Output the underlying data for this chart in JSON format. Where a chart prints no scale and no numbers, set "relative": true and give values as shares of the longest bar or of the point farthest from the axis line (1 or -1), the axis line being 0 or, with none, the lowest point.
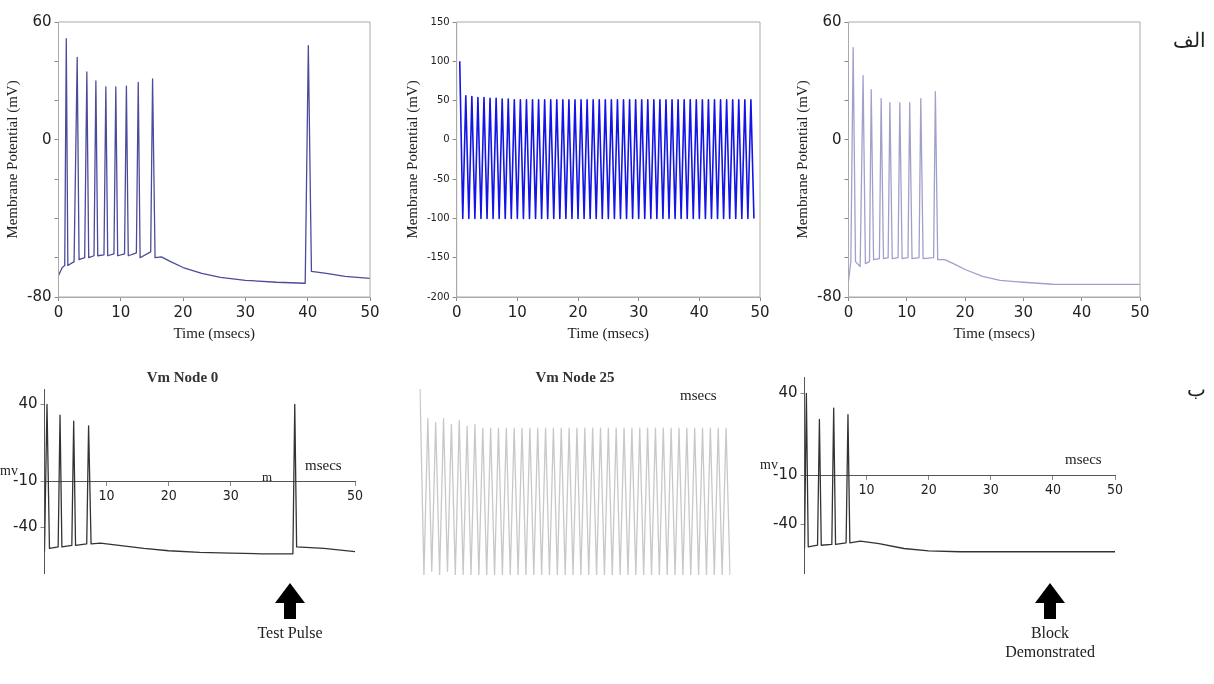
{
  "chart_data": [
    {
      "type": "line",
      "xlabel": "Time (msecs)",
      "ylabel": "Membrane Potential (mV)",
      "color": "#4b4b9b",
      "marker": "none",
      "x": [
        0,
        0.6,
        1.0,
        1.25,
        1.5,
        2.5,
        3.0,
        3.3,
        4.2,
        4.55,
        4.85,
        5.7,
        6.0,
        6.3,
        7.3,
        7.6,
        7.9,
        8.9,
        9.2,
        9.5,
        10.6,
        10.9,
        11.2,
        12.5,
        12.8,
        13.1,
        14.8,
        15.1,
        15.5,
        16.5,
        18,
        20,
        23,
        26,
        30,
        35,
        39.6,
        40.1,
        40.6,
        43,
        46,
        50
      ],
      "values": [
        -69,
        -65,
        -64,
        51.5,
        -64,
        -62,
        42,
        -61,
        -60,
        34.6,
        -60,
        -59,
        30,
        -59,
        -58.5,
        27,
        -59,
        -58,
        27,
        -59,
        -58,
        27.4,
        -59,
        -57.5,
        29.3,
        -60,
        -57,
        31,
        -60,
        -59.6,
        -62,
        -65,
        -68,
        -70,
        -71.5,
        -72.5,
        -73,
        48,
        -67,
        -68,
        -69.5,
        -70.5
      ],
      "xlim": [
        0,
        50
      ],
      "ylim": [
        -80,
        60
      ],
      "xticks": [
        0,
        10,
        20,
        30,
        40,
        50
      ],
      "yticks": [
        -80,
        {
          "value": -60,
          "label": null
        },
        {
          "value": -40,
          "label": null
        },
        {
          "value": -20,
          "label": null
        },
        0,
        {
          "value": 20,
          "label": null
        },
        {
          "value": 40,
          "label": null
        },
        60
      ]
    },
    {
      "type": "line",
      "xlabel": "Time (msecs)",
      "ylabel": "Membrane Potential (mV)",
      "color": "#1414e6",
      "marker": "none",
      "x": [
        0.5,
        1,
        1.5,
        2,
        2.5,
        3,
        3.5,
        4,
        4.5,
        5,
        5.5,
        6,
        6.5,
        7,
        7.5,
        8,
        8.5,
        9,
        9.5,
        10,
        10.5,
        11,
        11.5,
        12,
        12.5,
        13,
        13.5,
        14,
        14.5,
        15,
        15.5,
        16,
        16.5,
        17,
        17.5,
        18,
        18.5,
        19,
        19.5,
        20,
        20.5,
        21,
        21.5,
        22,
        22.5,
        23,
        23.5,
        24,
        24.5,
        25,
        25.5,
        26,
        26.5,
        27,
        27.5,
        28,
        28.5,
        29,
        29.5,
        30,
        30.5,
        31,
        31.5,
        32,
        32.5,
        33,
        33.5,
        34,
        34.5,
        35,
        35.5,
        36,
        36.5,
        37,
        37.5,
        38,
        38.5,
        39,
        39.5,
        40,
        40.5,
        41,
        41.5,
        42,
        42.5,
        43,
        43.5,
        44,
        44.5,
        45,
        45.5,
        46,
        46.5,
        47,
        47.5,
        48,
        48.5,
        49
      ],
      "values": [
        100,
        -100,
        56,
        -100,
        55,
        -100,
        54,
        -100,
        54,
        -100,
        53,
        -100,
        53,
        -100,
        52,
        -100,
        52,
        -100,
        51,
        -100,
        51,
        -100,
        51,
        -100,
        51,
        -100,
        51,
        -100,
        51,
        -100,
        51,
        -100,
        51,
        -100,
        51,
        -100,
        51,
        -100,
        51,
        -100,
        51,
        -100,
        51,
        -100,
        51,
        -100,
        51,
        -100,
        51,
        -100,
        51,
        -100,
        51,
        -100,
        51,
        -100,
        51,
        -100,
        51,
        -100,
        51,
        -100,
        51,
        -100,
        51,
        -100,
        51,
        -100,
        51,
        -100,
        51,
        -100,
        51,
        -100,
        51,
        -100,
        51,
        -100,
        51,
        -100,
        51,
        -100,
        51,
        -100,
        51,
        -100,
        51,
        -100,
        51,
        -100,
        51,
        -100,
        51,
        -100,
        51,
        -100,
        51,
        -100
      ],
      "xlim": [
        0,
        50
      ],
      "ylim": [
        -200,
        150
      ],
      "xticks": [
        0,
        10,
        20,
        30,
        40,
        50
      ],
      "yticks": [
        -200,
        -150,
        -100,
        -50,
        0,
        50,
        100,
        150
      ]
    },
    {
      "type": "line",
      "xlabel": "Time (msecs)",
      "ylabel": "Membrane Potential (mV)",
      "color": "#a0a0cc",
      "marker": "none",
      "x": [
        0,
        0.4,
        0.8,
        1.2,
        2.0,
        2.5,
        2.9,
        3.6,
        3.9,
        4.3,
        5.3,
        5.6,
        6.0,
        6.8,
        7.1,
        7.5,
        8.5,
        8.8,
        9.2,
        10.2,
        10.5,
        10.9,
        12.1,
        12.4,
        12.8,
        14.6,
        14.9,
        15.3,
        16.5,
        18,
        20,
        23,
        26,
        30,
        35,
        40,
        50
      ],
      "values": [
        -72,
        -62,
        47,
        -62,
        -64.5,
        32.7,
        -63,
        -62,
        25.5,
        -61,
        -60.5,
        21,
        -60.5,
        -60,
        19,
        -60.5,
        -60,
        19,
        -60.5,
        -60,
        19,
        -60.5,
        -60,
        21,
        -60.5,
        -60,
        24.5,
        -61,
        -61,
        -63,
        -66,
        -69.5,
        -71.5,
        -72.5,
        -73.5,
        -73.6,
        -73.6
      ],
      "xlim": [
        0,
        50
      ],
      "ylim": [
        -80,
        60
      ],
      "xticks": [
        0,
        10,
        20,
        30,
        40,
        50
      ],
      "yticks": [
        -80,
        {
          "value": -60,
          "label": null
        },
        {
          "value": -40,
          "label": null
        },
        {
          "value": -20,
          "label": null
        },
        0,
        {
          "value": 20,
          "label": null
        },
        {
          "value": 40,
          "label": null
        },
        60
      ],
      "annotations": [
        "الف"
      ]
    },
    {
      "type": "line",
      "title": "Vm Node 0",
      "xlabel": "msecs",
      "ylabel": "mv",
      "color": "#333333",
      "marker": "none",
      "x": [
        0,
        0.4,
        0.8,
        2.2,
        2.5,
        2.8,
        4.4,
        4.7,
        5.0,
        6.8,
        7.1,
        7.5,
        9,
        12,
        16,
        20,
        25,
        30,
        35,
        40,
        40.3,
        40.6,
        45,
        50
      ],
      "values": [
        -56,
        40,
        -54,
        -53,
        33,
        -53,
        -52,
        29,
        -52,
        -51,
        26,
        -51,
        -50.5,
        -52,
        -54,
        -55.5,
        -56.5,
        -57,
        -57.5,
        -57.5,
        40,
        -53,
        -54,
        -56
      ],
      "xlim": [
        0,
        50
      ],
      "ylim": [
        -70,
        50
      ],
      "xticks": [
        10,
        20,
        30,
        50
      ],
      "yticks": [
        -40,
        -10,
        40
      ],
      "annotations": [
        "m",
        "Test Pulse"
      ]
    },
    {
      "type": "line",
      "title": "Vm Node 25",
      "xlabel": "msecs",
      "color": "#c8c8c8",
      "marker": "none",
      "relative": true,
      "tick_labels": false,
      "categories": [
        null,
        null,
        null,
        null,
        null,
        null,
        null,
        null,
        null,
        null,
        null,
        null,
        null,
        null,
        null,
        null,
        null,
        null,
        null,
        null,
        null,
        null,
        null,
        null,
        null,
        null,
        null,
        null,
        null,
        null,
        null,
        null,
        null,
        null,
        null,
        null,
        null,
        null,
        null,
        null,
        null,
        null,
        null,
        null,
        null,
        null,
        null,
        null,
        null,
        null,
        null,
        null,
        null,
        null,
        null,
        null,
        null,
        null,
        null,
        null,
        null,
        null,
        null,
        null,
        null,
        null,
        null,
        null,
        null,
        null,
        null,
        null,
        null,
        null,
        null,
        null,
        null,
        null,
        null,
        null
      ],
      "values": [
        1,
        0,
        0.84,
        0.02,
        0.82,
        0,
        0.84,
        0.02,
        0.81,
        0,
        0.83,
        0,
        0.8,
        0,
        0.81,
        0,
        0.79,
        0,
        0.79,
        0,
        0.79,
        0,
        0.79,
        0,
        0.79,
        0,
        0.79,
        0,
        0.79,
        0,
        0.79,
        0,
        0.79,
        0,
        0.79,
        0,
        0.79,
        0,
        0.79,
        0,
        0.79,
        0,
        0.79,
        0,
        0.79,
        0,
        0.79,
        0,
        0.79,
        0,
        0.79,
        0,
        0.79,
        0,
        0.79,
        0,
        0.79,
        0,
        0.79,
        0,
        0.79,
        0,
        0.79,
        0,
        0.79,
        0,
        0.79,
        0,
        0.79,
        0,
        0.79,
        0,
        0.79,
        0,
        0.79,
        0,
        0.79,
        0,
        0.79,
        0
      ]
    },
    {
      "type": "line",
      "xlabel": "msecs",
      "ylabel": "mv",
      "color": "#333333",
      "marker": "none",
      "x": [
        0,
        0.3,
        0.6,
        2.1,
        2.4,
        2.7,
        4.4,
        4.7,
        5.0,
        6.7,
        7.0,
        7.3,
        9,
        12,
        16,
        20,
        25,
        30,
        40,
        50
      ],
      "values": [
        -55,
        40,
        -54,
        -53,
        24,
        -53,
        -52.5,
        31,
        -52.5,
        -51.5,
        27,
        -51.5,
        -50.5,
        -52,
        -55,
        -56.5,
        -57,
        -57,
        -57,
        -57
      ],
      "xlim": [
        0,
        50
      ],
      "ylim": [
        -70,
        50
      ],
      "xticks": [
        10,
        20,
        30,
        40,
        50
      ],
      "yticks": [
        -40,
        -10,
        40
      ],
      "annotations": [
        "Block Demonstrated",
        "ب"
      ]
    }
  ]
}
